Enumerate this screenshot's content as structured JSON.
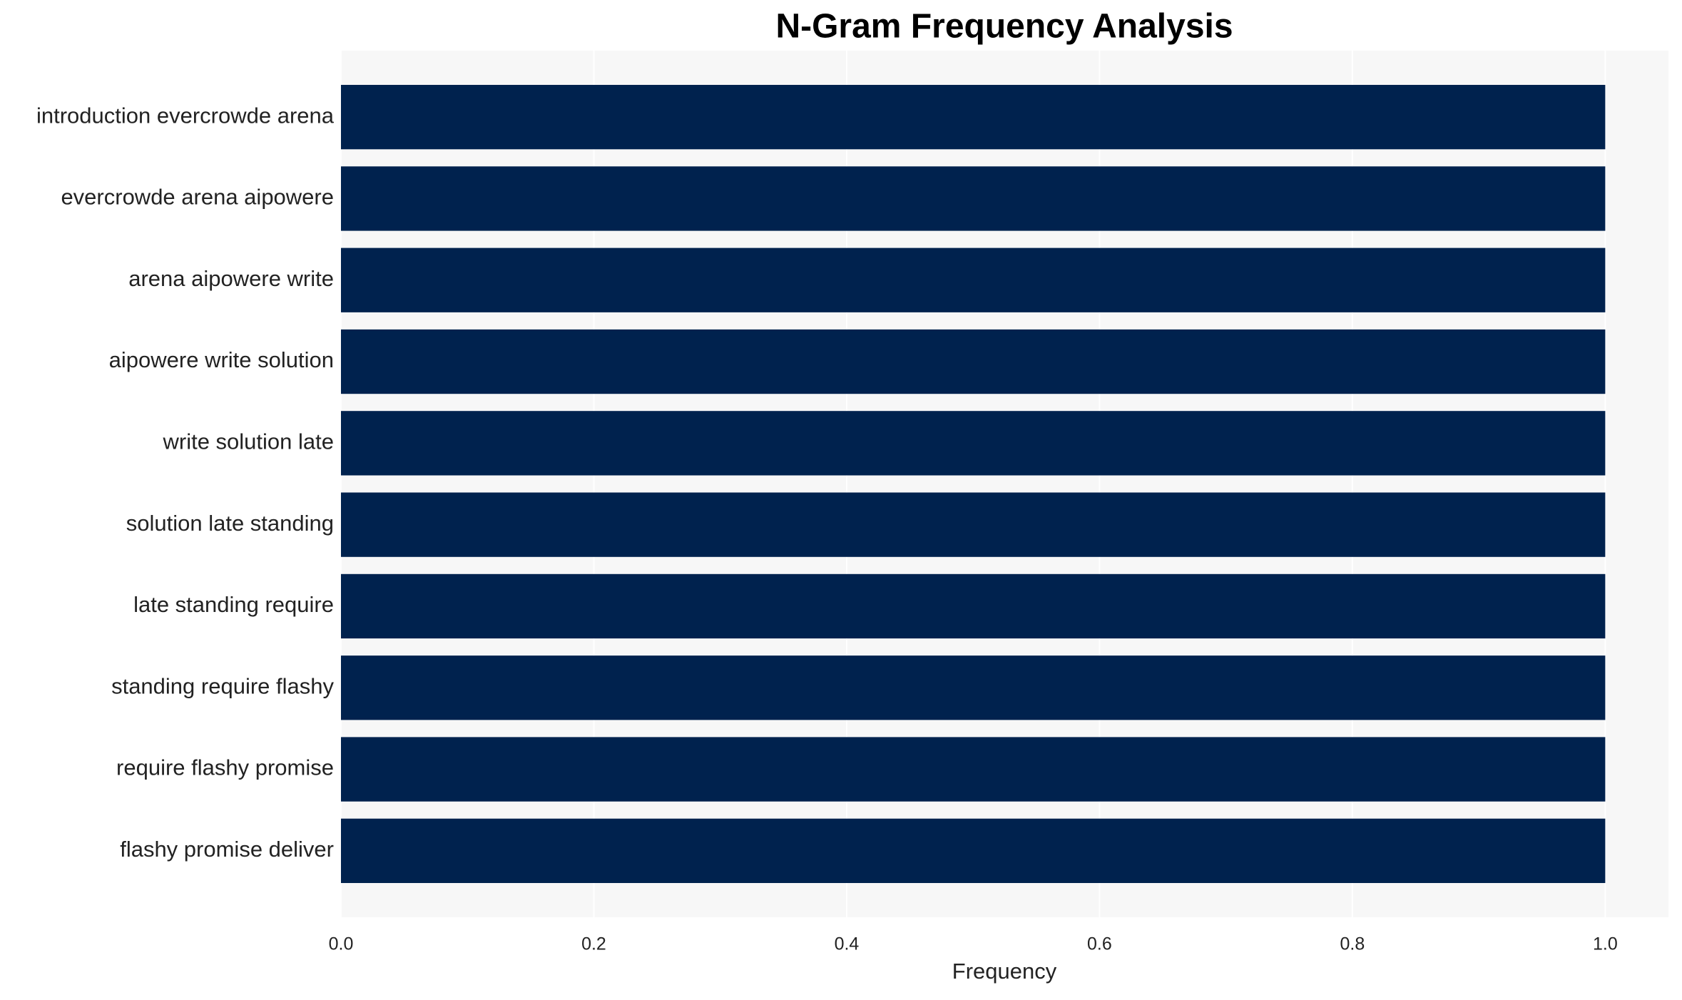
{
  "chart_data": {
    "type": "barh",
    "title": "N-Gram Frequency Analysis",
    "x_label": "Frequency",
    "categories": [
      "introduction evercrowde arena",
      "evercrowde arena aipowere",
      "arena aipowere write",
      "aipowere write solution",
      "write solution late",
      "solution late standing",
      "late standing require",
      "standing require flashy",
      "require flashy promise",
      "flashy promise deliver"
    ],
    "values": [
      1,
      1,
      1,
      1,
      1,
      1,
      1,
      1,
      1,
      1
    ],
    "color": "#00224e",
    "xlim": [
      0,
      1.05
    ],
    "xticks": [
      {
        "value": 0,
        "label": "0.0"
      },
      0.2,
      0.4,
      0.6,
      0.8,
      {
        "value": 1,
        "label": "1.0"
      }
    ],
    "grid": true
  }
}
